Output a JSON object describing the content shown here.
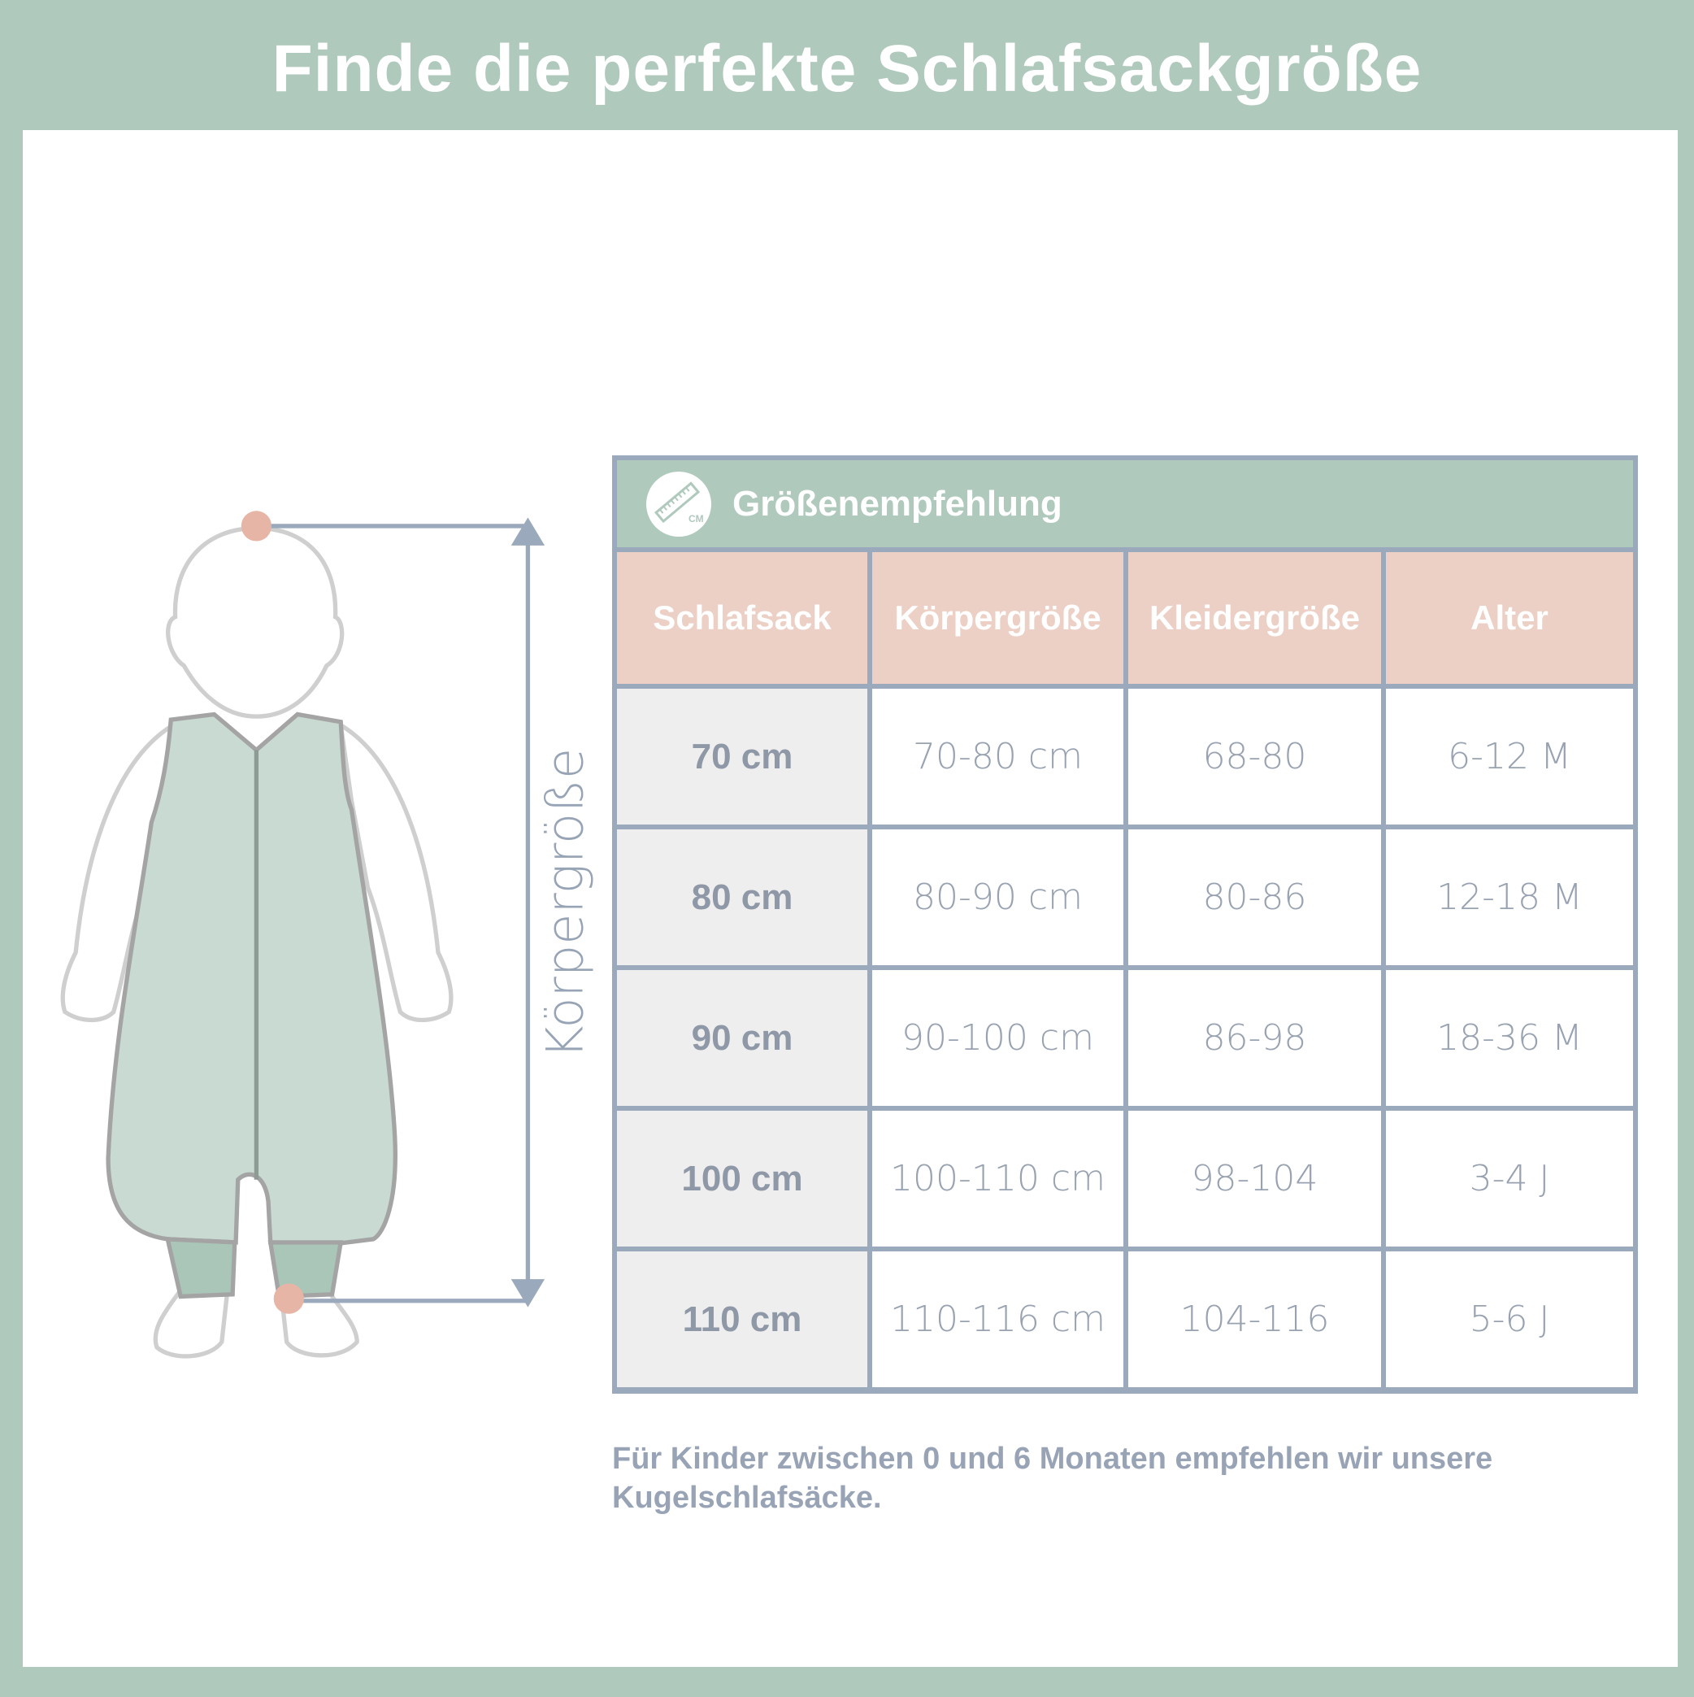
{
  "title": "Finde die perfekte Schlafsackgröße",
  "figure": {
    "measure_label": "Körpergröße"
  },
  "table": {
    "heading": "Größenempfehlung",
    "icon": "ruler-cm-icon",
    "icon_text": "CM",
    "columns": [
      "Schlafsack",
      "Körpergröße",
      "Kleidergröße",
      "Alter"
    ],
    "rows": [
      [
        "70 cm",
        "70-80 cm",
        "68-80",
        "6-12 M"
      ],
      [
        "80 cm",
        "80-90 cm",
        "80-86",
        "12-18 M"
      ],
      [
        "90 cm",
        "90-100 cm",
        "86-98",
        "18-36 M"
      ],
      [
        "100 cm",
        "100-110 cm",
        "98-104",
        "3-4 J"
      ],
      [
        "110 cm",
        "110-116 cm",
        "104-116",
        "5-6 J"
      ]
    ]
  },
  "note": "Für Kinder zwischen 0 und 6 Monaten empfehlen wir unsere Kugelschlafsäcke.",
  "colors": {
    "frame": "#afc9bd",
    "header": "#ecd0c6",
    "border": "#9aa9bb",
    "text": "#8e98a6"
  }
}
